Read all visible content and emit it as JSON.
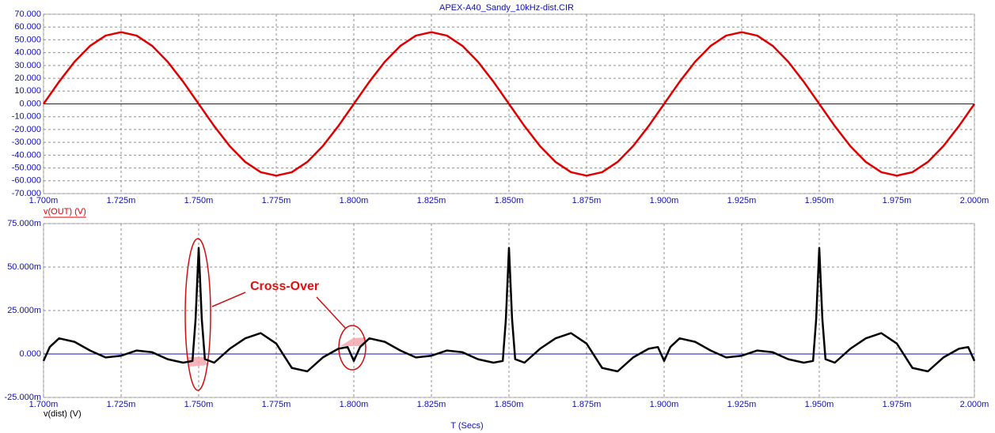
{
  "chart_data": [
    {
      "type": "line",
      "title": "APEX-A40_Sandy_10kHz-dist.CIR",
      "x": [
        1.7,
        1.705,
        1.71,
        1.715,
        1.72,
        1.725,
        1.73,
        1.735,
        1.74,
        1.745,
        1.75,
        1.755,
        1.76,
        1.765,
        1.77,
        1.775,
        1.78,
        1.785,
        1.79,
        1.795,
        1.8,
        1.805,
        1.81,
        1.815,
        1.82,
        1.825,
        1.83,
        1.835,
        1.84,
        1.845,
        1.85,
        1.855,
        1.86,
        1.865,
        1.87,
        1.875,
        1.88,
        1.885,
        1.89,
        1.895,
        1.9,
        1.905,
        1.91,
        1.915,
        1.92,
        1.925,
        1.93,
        1.935,
        1.94,
        1.945,
        1.95,
        1.955,
        1.96,
        1.965,
        1.97,
        1.975,
        1.98,
        1.985,
        1.99,
        1.995,
        2.0
      ],
      "series": [
        {
          "name": "v(OUT) (V)",
          "color": "#e00000",
          "values": [
            0,
            17.3,
            32.9,
            45.3,
            53.3,
            56,
            53.3,
            45.3,
            32.9,
            17.3,
            0,
            -17.3,
            -32.9,
            -45.3,
            -53.3,
            -56,
            -53.3,
            -45.3,
            -32.9,
            -17.3,
            0,
            17.3,
            32.9,
            45.3,
            53.3,
            56,
            53.3,
            45.3,
            32.9,
            17.3,
            0,
            -17.3,
            -32.9,
            -45.3,
            -53.3,
            -56,
            -53.3,
            -45.3,
            -32.9,
            -17.3,
            0,
            17.3,
            32.9,
            45.3,
            53.3,
            56,
            53.3,
            45.3,
            32.9,
            17.3,
            0,
            -17.3,
            -32.9,
            -45.3,
            -53.3,
            -56,
            -53.3,
            -45.3,
            -32.9,
            -17.3,
            0
          ]
        }
      ],
      "xlim": [
        1.7,
        2.0
      ],
      "xticks": [
        {
          "value": 1.7,
          "label": "1.700m"
        },
        {
          "value": 1.725,
          "label": "1.725m"
        },
        {
          "value": 1.75,
          "label": "1.750m"
        },
        {
          "value": 1.775,
          "label": "1.775m"
        },
        {
          "value": 1.8,
          "label": "1.800m"
        },
        {
          "value": 1.825,
          "label": "1.825m"
        },
        {
          "value": 1.85,
          "label": "1.850m"
        },
        {
          "value": 1.875,
          "label": "1.875m"
        },
        {
          "value": 1.9,
          "label": "1.900m"
        },
        {
          "value": 1.925,
          "label": "1.925m"
        },
        {
          "value": 1.95,
          "label": "1.950m"
        },
        {
          "value": 1.975,
          "label": "1.975m"
        },
        {
          "value": 2.0,
          "label": "2.000m"
        }
      ],
      "ylim": [
        -70,
        70
      ],
      "yticks": [
        {
          "value": -70,
          "label": "-70.000"
        },
        {
          "value": -60,
          "label": "-60.000"
        },
        {
          "value": -50,
          "label": "-50.000"
        },
        {
          "value": -40,
          "label": "-40.000"
        },
        {
          "value": -30,
          "label": "-30.000"
        },
        {
          "value": -20,
          "label": "-20.000"
        },
        {
          "value": -10,
          "label": "-10.000"
        },
        {
          "value": 0,
          "label": "0.000"
        },
        {
          "value": 10,
          "label": "10.000"
        },
        {
          "value": 20,
          "label": "20.000"
        },
        {
          "value": 30,
          "label": "30.000"
        },
        {
          "value": 40,
          "label": "40.000"
        },
        {
          "value": 50,
          "label": "50.000"
        },
        {
          "value": 60,
          "label": "60.000"
        },
        {
          "value": 70,
          "label": "70.000"
        }
      ],
      "grid": true
    },
    {
      "type": "line",
      "xlabel": "T (Secs)",
      "annotation": "Cross-Over",
      "x": [
        1.7,
        1.702,
        1.705,
        1.71,
        1.715,
        1.72,
        1.725,
        1.73,
        1.735,
        1.74,
        1.745,
        1.748,
        1.749,
        1.75,
        1.751,
        1.752,
        1.755,
        1.76,
        1.765,
        1.77,
        1.775,
        1.78,
        1.785,
        1.79,
        1.795,
        1.798,
        1.8,
        1.802,
        1.805,
        1.81,
        1.815,
        1.82,
        1.825,
        1.83,
        1.835,
        1.84,
        1.845,
        1.848,
        1.849,
        1.85,
        1.851,
        1.852,
        1.855,
        1.86,
        1.865,
        1.87,
        1.875,
        1.88,
        1.885,
        1.89,
        1.895,
        1.898,
        1.9,
        1.902,
        1.905,
        1.91,
        1.915,
        1.92,
        1.925,
        1.93,
        1.935,
        1.94,
        1.945,
        1.948,
        1.949,
        1.95,
        1.951,
        1.952,
        1.955,
        1.96,
        1.965,
        1.97,
        1.975,
        1.98,
        1.985,
        1.99,
        1.995,
        1.998,
        2.0
      ],
      "series": [
        {
          "name": "v(dist) (V)",
          "color": "#000000",
          "values": [
            -4,
            4,
            9,
            7,
            2,
            -2,
            -1,
            2,
            1,
            -3,
            -5,
            -4,
            20,
            61,
            20,
            -3,
            -5,
            3,
            9,
            12,
            6,
            -8,
            -10,
            -2,
            3,
            4,
            -4,
            4,
            9,
            7,
            2,
            -2,
            -1,
            2,
            1,
            -3,
            -5,
            -4,
            20,
            61,
            20,
            -3,
            -5,
            3,
            9,
            12,
            6,
            -8,
            -10,
            -2,
            3,
            4,
            -4,
            4,
            9,
            7,
            2,
            -2,
            -1,
            2,
            1,
            -3,
            -5,
            -4,
            20,
            61,
            20,
            -3,
            -5,
            3,
            9,
            12,
            6,
            -8,
            -10,
            -2,
            3,
            4,
            -4
          ]
        }
      ],
      "xlim": [
        1.7,
        2.0
      ],
      "xticks": [
        {
          "value": 1.7,
          "label": "1.700m"
        },
        {
          "value": 1.725,
          "label": "1.725m"
        },
        {
          "value": 1.75,
          "label": "1.750m"
        },
        {
          "value": 1.775,
          "label": "1.775m"
        },
        {
          "value": 1.8,
          "label": "1.800m"
        },
        {
          "value": 1.825,
          "label": "1.825m"
        },
        {
          "value": 1.85,
          "label": "1.850m"
        },
        {
          "value": 1.875,
          "label": "1.875m"
        },
        {
          "value": 1.9,
          "label": "1.900m"
        },
        {
          "value": 1.925,
          "label": "1.925m"
        },
        {
          "value": 1.95,
          "label": "1.950m"
        },
        {
          "value": 1.975,
          "label": "1.975m"
        },
        {
          "value": 2.0,
          "label": "2.000m"
        }
      ],
      "ylim": [
        -25,
        75
      ],
      "yticks": [
        {
          "value": -25,
          "label": "-25.000m"
        },
        {
          "value": 0,
          "label": "0.000"
        },
        {
          "value": 25,
          "label": "25.000m"
        },
        {
          "value": 50,
          "label": "50.000m"
        },
        {
          "value": 75,
          "label": "75.000m"
        }
      ],
      "grid": true
    }
  ]
}
